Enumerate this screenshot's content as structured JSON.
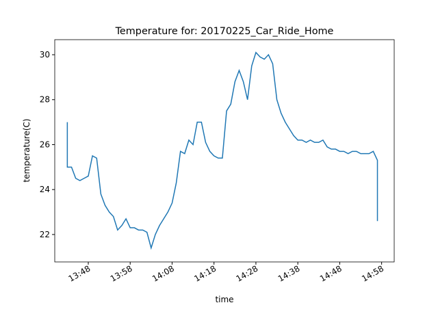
{
  "chart_data": {
    "type": "line",
    "title": "Temperature for: 20170225_Car_Ride_Home",
    "x_label": "time",
    "y_label": "temperature(C)",
    "x": [
      "13:43",
      "13:43",
      "13:44",
      "13:45",
      "13:46",
      "13:47",
      "13:48",
      "13:49",
      "13:50",
      "13:51",
      "13:52",
      "13:53",
      "13:54",
      "13:55",
      "13:56",
      "13:57",
      "13:58",
      "13:59",
      "14:00",
      "14:01",
      "14:02",
      "14:03",
      "14:04",
      "14:05",
      "14:06",
      "14:07",
      "14:08",
      "14:09",
      "14:10",
      "14:11",
      "14:12",
      "14:13",
      "14:14",
      "14:15",
      "14:16",
      "14:17",
      "14:18",
      "14:19",
      "14:20",
      "14:21",
      "14:22",
      "14:23",
      "14:24",
      "14:25",
      "14:26",
      "14:27",
      "14:28",
      "14:29",
      "14:30",
      "14:31",
      "14:32",
      "14:33",
      "14:34",
      "14:35",
      "14:36",
      "14:37",
      "14:38",
      "14:39",
      "14:40",
      "14:41",
      "14:42",
      "14:43",
      "14:44",
      "14:45",
      "14:46",
      "14:47",
      "14:48",
      "14:49",
      "14:50",
      "14:51",
      "14:52",
      "14:53",
      "14:54",
      "14:55",
      "14:56",
      "14:57",
      "14:57"
    ],
    "series": [
      {
        "name": "temperature",
        "color": "#1f77b4",
        "values": [
          27.0,
          25.0,
          25.0,
          24.5,
          24.4,
          24.5,
          24.6,
          25.5,
          25.4,
          23.8,
          23.3,
          23.0,
          22.8,
          22.2,
          22.4,
          22.7,
          22.3,
          22.3,
          22.2,
          22.2,
          22.1,
          21.4,
          22.0,
          22.4,
          22.7,
          23.0,
          23.4,
          24.3,
          25.7,
          25.6,
          26.2,
          26.0,
          27.0,
          27.0,
          26.1,
          25.7,
          25.5,
          25.4,
          25.4,
          27.5,
          27.8,
          28.8,
          29.3,
          28.8,
          28.0,
          29.5,
          30.1,
          29.9,
          29.8,
          30.0,
          29.6,
          28.0,
          27.4,
          27.0,
          26.7,
          26.4,
          26.2,
          26.2,
          26.1,
          26.2,
          26.1,
          26.1,
          26.2,
          25.9,
          25.8,
          25.8,
          25.7,
          25.7,
          25.6,
          25.7,
          25.7,
          25.6,
          25.6,
          25.6,
          25.7,
          25.3,
          22.6
        ]
      }
    ],
    "xlim": [
      "13:40",
      "15:01"
    ],
    "xticks": [
      "13:48",
      "13:58",
      "14:08",
      "14:18",
      "14:28",
      "14:38",
      "14:48",
      "14:58"
    ],
    "ylim": [
      20.78,
      30.67
    ],
    "yticks": [
      22,
      24,
      26,
      28,
      30
    ],
    "grid": false
  }
}
